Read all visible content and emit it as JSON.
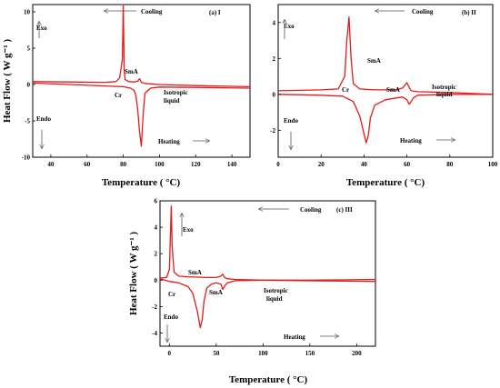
{
  "chart_data": [
    {
      "type": "line",
      "panel_label": "(a) I",
      "xlabel": "Temperature ( °C)",
      "ylabel": "Heat Flow ( W g⁻¹ )",
      "xlim": [
        30,
        150
      ],
      "ylim": [
        -10,
        11
      ],
      "xticks": [
        40,
        60,
        80,
        100,
        120,
        140
      ],
      "yticks": [
        -10,
        -5,
        0,
        5,
        10
      ],
      "annotations": {
        "cooling": "Cooling",
        "heating": "Heating",
        "exo": "Exo",
        "endo": "Endo",
        "cr": "Cr",
        "sma": "SmA",
        "iso1": "Isotropic",
        "iso2": "liquid"
      },
      "series": [
        {
          "x": [
            30,
            50,
            70,
            76,
            78,
            79.5,
            80,
            80.5,
            81,
            83,
            86,
            88,
            89,
            90,
            92,
            100,
            120,
            150
          ],
          "y": [
            0.4,
            0.35,
            0.3,
            0.4,
            0.9,
            3.5,
            11,
            2.0,
            0.7,
            0.4,
            0.35,
            0.45,
            0.8,
            0.3,
            0.15,
            0.0,
            -0.15,
            -0.3
          ]
        },
        {
          "x": [
            30,
            50,
            70,
            80,
            84,
            86,
            87,
            88,
            89,
            90,
            91,
            92,
            95,
            100,
            120,
            150
          ],
          "y": [
            0.2,
            0.0,
            -0.2,
            -0.3,
            -0.5,
            -0.8,
            -1.5,
            -3.5,
            -6.5,
            -8.5,
            -4.0,
            -1.2,
            -0.5,
            -0.35,
            -0.4,
            -0.5
          ]
        }
      ]
    },
    {
      "type": "line",
      "panel_label": "(b) II",
      "xlabel": "Temperature ( °C)",
      "ylabel": "",
      "xlim": [
        0,
        100
      ],
      "ylim": [
        -3.5,
        5
      ],
      "xticks": [
        0,
        20,
        40,
        60,
        80,
        100
      ],
      "yticks": [
        -2,
        0,
        2,
        4
      ],
      "annotations": {
        "cooling": "Cooling",
        "heating": "Heating",
        "exo": "Exo",
        "endo": "Endo",
        "cr": "Cr",
        "sma": "SmA",
        "sma2": "SmA",
        "iso1": "Isotropic",
        "iso2": "liquid"
      },
      "series": [
        {
          "x": [
            0,
            20,
            28,
            31,
            32,
            33,
            34,
            35,
            38,
            45,
            55,
            58,
            60,
            61,
            62,
            65,
            80,
            100
          ],
          "y": [
            0.2,
            0.25,
            0.3,
            1.0,
            3.0,
            4.3,
            2.0,
            0.6,
            0.3,
            0.25,
            0.25,
            0.35,
            0.65,
            0.4,
            0.2,
            0.15,
            0.1,
            0.0
          ]
        },
        {
          "x": [
            0,
            20,
            30,
            35,
            38,
            40,
            41,
            42,
            43,
            45,
            50,
            55,
            58,
            60,
            61,
            62,
            63,
            65,
            80,
            100
          ],
          "y": [
            0.0,
            -0.05,
            -0.1,
            -0.4,
            -1.2,
            -2.2,
            -2.7,
            -2.3,
            -1.3,
            -0.6,
            -0.3,
            -0.2,
            -0.15,
            -0.3,
            -0.55,
            -0.4,
            -0.2,
            -0.05,
            0.0,
            0.0
          ]
        }
      ]
    },
    {
      "type": "line",
      "panel_label": "(c) III",
      "xlabel": "Temperature ( °C)",
      "ylabel": "Heat Flow ( W g⁻¹ )",
      "xlim": [
        -10,
        220
      ],
      "ylim": [
        -5,
        6
      ],
      "xticks": [
        0,
        50,
        100,
        150,
        200
      ],
      "yticks": [
        -4,
        -2,
        0,
        2,
        4,
        6
      ],
      "annotations": {
        "cooling": "Cooling",
        "heating": "Heating",
        "exo": "Exo",
        "endo": "Endo",
        "cr": "Cr",
        "sma": "SmA",
        "sma2": "SmA",
        "iso1": "Isotropic",
        "iso2": "liquid"
      },
      "series": [
        {
          "x": [
            -10,
            -3,
            0,
            1,
            2,
            3,
            5,
            10,
            20,
            40,
            50,
            55,
            57,
            59,
            62,
            70,
            100,
            150,
            220
          ],
          "y": [
            0.15,
            0.2,
            0.8,
            3.0,
            5.6,
            2.5,
            0.6,
            0.3,
            0.25,
            0.2,
            0.2,
            0.3,
            0.45,
            0.2,
            0.1,
            0.05,
            0.0,
            -0.05,
            -0.1
          ]
        },
        {
          "x": [
            -10,
            0,
            10,
            20,
            25,
            30,
            33,
            35,
            37,
            40,
            45,
            50,
            55,
            57,
            59,
            62,
            70,
            100,
            150,
            220
          ],
          "y": [
            0.1,
            -0.1,
            -0.2,
            -0.5,
            -1.0,
            -2.4,
            -3.6,
            -3.0,
            -1.6,
            -0.6,
            -0.3,
            -0.2,
            -0.3,
            -0.7,
            -0.45,
            -0.2,
            -0.05,
            0.0,
            0.0,
            0.05
          ]
        }
      ]
    }
  ]
}
